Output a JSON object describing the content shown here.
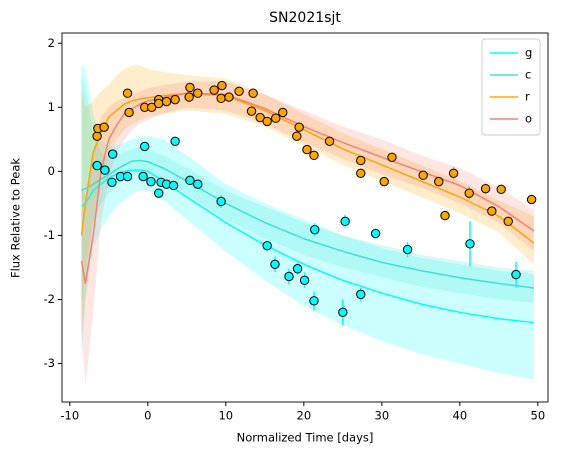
{
  "chart_data": {
    "type": "line",
    "title": "SN2021sjt",
    "x_label": "Normalized Time [days]",
    "y_label": "Flux Relative to Peak",
    "xlim": [
      -11.0,
      51.3
    ],
    "ylim": [
      -3.6,
      2.16
    ],
    "xticks": [
      -10,
      0,
      10,
      20,
      30,
      40,
      50
    ],
    "yticks": [
      -3,
      -2,
      -1,
      0,
      1,
      2
    ],
    "legend": "upper right",
    "x": [
      -8.5,
      -8,
      -7,
      -6,
      -5,
      -4,
      -3,
      -2,
      -1,
      0,
      2,
      5,
      10,
      15,
      20,
      25,
      30,
      35,
      40,
      45,
      49.5
    ],
    "series": [
      {
        "name": "g",
        "color": "#00ffff",
        "values": [
          -0.55,
          -0.5,
          -0.3,
          -0.2,
          -0.1,
          -0.04,
          0.0,
          0.02,
          0.02,
          0.0,
          -0.15,
          -0.4,
          -0.8,
          -1.15,
          -1.45,
          -1.7,
          -1.9,
          -2.07,
          -2.2,
          -2.3,
          -2.36
        ],
        "lower": [
          -3.0,
          -2.0,
          -1.2,
          -0.9,
          -0.7,
          -0.55,
          -0.45,
          -0.35,
          -0.3,
          -0.3,
          -0.45,
          -0.75,
          -1.25,
          -1.7,
          -2.1,
          -2.4,
          -2.65,
          -2.85,
          -3.0,
          -3.15,
          -3.25
        ],
        "upper": [
          1.65,
          1.6,
          0.9,
          0.5,
          0.4,
          0.4,
          0.45,
          0.5,
          0.55,
          0.55,
          0.5,
          0.25,
          -0.2,
          -0.5,
          -0.75,
          -1.0,
          -1.2,
          -1.35,
          -1.45,
          -1.55,
          -1.6
        ]
      },
      {
        "name": "c",
        "color": "#40e0d0",
        "values": [
          -0.3,
          -0.27,
          -0.2,
          -0.12,
          -0.05,
          0.03,
          0.1,
          0.16,
          0.17,
          0.15,
          0.05,
          -0.15,
          -0.5,
          -0.8,
          -1.05,
          -1.25,
          -1.42,
          -1.55,
          -1.66,
          -1.75,
          -1.82
        ],
        "lower": [
          -2.2,
          -1.5,
          -0.8,
          -0.5,
          -0.35,
          -0.2,
          -0.1,
          -0.05,
          -0.05,
          -0.05,
          -0.15,
          -0.35,
          -0.75,
          -1.05,
          -1.3,
          -1.5,
          -1.65,
          -1.8,
          -1.9,
          -2.0,
          -2.05
        ],
        "upper": [
          1.5,
          1.3,
          0.6,
          0.3,
          0.2,
          0.25,
          0.3,
          0.35,
          0.38,
          0.35,
          0.25,
          0.05,
          -0.3,
          -0.55,
          -0.8,
          -1.0,
          -1.15,
          -1.3,
          -1.4,
          -1.5,
          -1.55
        ]
      },
      {
        "name": "r",
        "color": "#ffa500",
        "values": [
          -1.0,
          -0.5,
          0.3,
          0.6,
          0.85,
          0.95,
          1.05,
          1.1,
          1.13,
          1.15,
          1.18,
          1.22,
          1.18,
          0.95,
          0.65,
          0.35,
          0.1,
          -0.15,
          -0.4,
          -0.7,
          -1.12
        ],
        "lower": [
          -2.6,
          -2.0,
          -0.8,
          -0.1,
          0.3,
          0.5,
          0.65,
          0.75,
          0.8,
          0.85,
          0.9,
          0.95,
          0.9,
          0.7,
          0.4,
          0.1,
          -0.15,
          -0.4,
          -0.65,
          -0.95,
          -1.45
        ],
        "upper": [
          1.3,
          1.0,
          1.1,
          1.25,
          1.35,
          1.5,
          1.6,
          1.65,
          1.65,
          1.6,
          1.55,
          1.5,
          1.45,
          1.2,
          0.9,
          0.6,
          0.35,
          0.1,
          -0.15,
          -0.45,
          -0.7
        ]
      },
      {
        "name": "o",
        "color": "#fa8072",
        "values": [
          -1.4,
          -1.75,
          -1.0,
          0.0,
          0.5,
          0.72,
          0.9,
          0.98,
          1.05,
          1.1,
          1.15,
          1.22,
          1.2,
          0.98,
          0.7,
          0.45,
          0.22,
          0.0,
          -0.22,
          -0.55,
          -0.93
        ],
        "lower": [
          -2.5,
          -3.35,
          -2.2,
          -0.8,
          -0.1,
          0.3,
          0.5,
          0.65,
          0.75,
          0.8,
          0.9,
          1.0,
          0.95,
          0.75,
          0.45,
          0.2,
          -0.05,
          -0.25,
          -0.5,
          -0.8,
          -1.25
        ],
        "upper": [
          -0.2,
          -0.4,
          0.3,
          0.85,
          1.0,
          1.1,
          1.15,
          1.2,
          1.25,
          1.3,
          1.35,
          1.4,
          1.4,
          1.2,
          0.95,
          0.7,
          0.5,
          0.25,
          0.05,
          -0.25,
          -0.6
        ]
      }
    ],
    "points": [
      {
        "color": "#00ffff",
        "x": [
          -6.5,
          -5.5,
          -4.6,
          -4.5,
          -3.5,
          -2.6,
          -0.6,
          -0.4,
          0.4,
          1.4,
          1.7,
          2.4,
          3.3,
          3.5,
          5.4,
          6.4,
          9.4,
          15.3,
          16.3,
          18.1,
          19.2,
          20.1,
          21.3,
          21.4,
          25.3,
          25.0,
          27.3,
          29.2,
          33.3,
          41.3,
          47.2
        ],
        "values": [
          0.09,
          0.02,
          -0.17,
          0.27,
          -0.08,
          -0.08,
          -0.08,
          0.39,
          -0.16,
          -0.34,
          -0.17,
          -0.2,
          -0.22,
          0.47,
          -0.14,
          -0.2,
          -0.47,
          -1.16,
          -1.45,
          -1.64,
          -1.52,
          -1.7,
          -2.02,
          -0.91,
          -0.78,
          -2.2,
          -1.92,
          -0.97,
          -1.22,
          -1.13,
          -1.61
        ],
        "errors": [
          0.05,
          0.05,
          0.05,
          0.05,
          0.05,
          0.05,
          0.05,
          0.05,
          0.05,
          0.05,
          0.05,
          0.05,
          0.05,
          0.05,
          0.05,
          0.05,
          0.1,
          0.08,
          0.12,
          0.12,
          0.1,
          0.12,
          0.15,
          0.1,
          0.1,
          0.2,
          0.1,
          0.08,
          0.12,
          0.35,
          0.2
        ]
      },
      {
        "color": "#ffa500",
        "x": [
          -6.5,
          -6.4,
          -5.6,
          -2.6,
          -2.4,
          -0.4,
          0.5,
          1.4,
          1.4,
          2.4,
          3.5,
          5.3,
          5.4,
          6.4,
          8.5,
          9.4,
          9.5,
          10.4,
          11.7,
          13.3,
          13.5,
          14.4,
          15.3,
          16.4,
          17.3,
          19.1,
          19.4,
          20.4,
          21.3,
          23.3,
          27.3,
          27.3,
          31.3,
          30.3,
          35.3,
          37.3,
          39.2,
          38.1,
          41.2,
          43.3,
          44.1,
          45.3,
          46.2,
          49.2
        ],
        "values": [
          0.55,
          0.67,
          0.69,
          1.22,
          0.92,
          1.0,
          1.0,
          1.12,
          1.06,
          1.09,
          1.12,
          1.16,
          1.31,
          1.22,
          1.27,
          1.14,
          1.34,
          1.16,
          1.25,
          0.94,
          1.22,
          0.84,
          0.78,
          0.83,
          0.92,
          0.55,
          0.69,
          0.34,
          0.25,
          0.47,
          0.17,
          -0.03,
          0.22,
          -0.16,
          -0.06,
          -0.16,
          -0.03,
          -0.69,
          -0.34,
          -0.27,
          -0.62,
          -0.28,
          -0.78,
          -0.44
        ],
        "errors": [
          0.06,
          0.06,
          0.06,
          0.06,
          0.06,
          0.06,
          0.06,
          0.06,
          0.06,
          0.06,
          0.06,
          0.06,
          0.06,
          0.06,
          0.06,
          0.06,
          0.06,
          0.06,
          0.06,
          0.06,
          0.06,
          0.06,
          0.06,
          0.06,
          0.06,
          0.06,
          0.06,
          0.06,
          0.06,
          0.06,
          0.06,
          0.06,
          0.06,
          0.06,
          0.06,
          0.06,
          0.1,
          0.06,
          0.1,
          0.08,
          0.06,
          0.06,
          0.06,
          0.06
        ]
      }
    ]
  }
}
